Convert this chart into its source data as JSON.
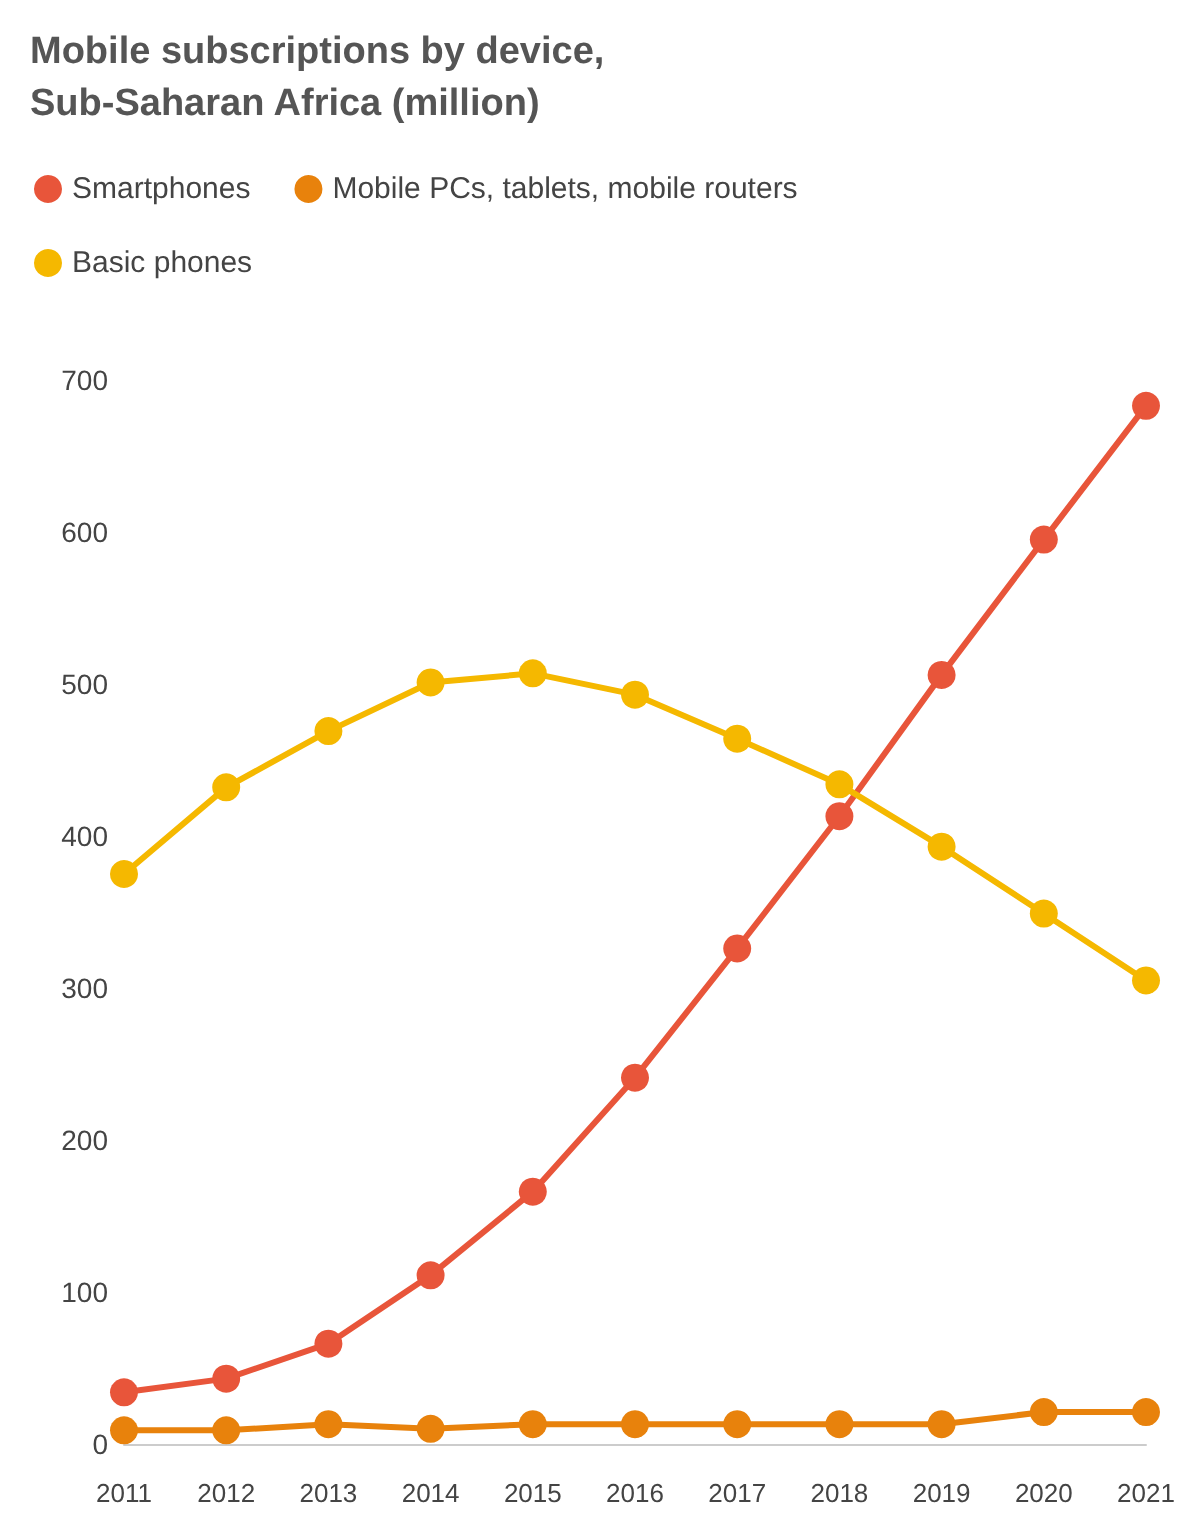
{
  "chart_data": {
    "type": "line",
    "title": "Mobile subscriptions by device, Sub-Saharan Africa (million)",
    "categories": [
      "2011",
      "2012",
      "2013",
      "2014",
      "2015",
      "2016",
      "2017",
      "2018",
      "2019",
      "2020",
      "2021"
    ],
    "series": [
      {
        "name": "Smartphones",
        "color": "#e8553a",
        "values": [
          34,
          43,
          66,
          111,
          166,
          241,
          326,
          413,
          506,
          595,
          683
        ]
      },
      {
        "name": "Mobile PCs, tablets, mobile routers",
        "color": "#e8820c",
        "values": [
          9,
          9,
          13,
          10,
          13,
          13,
          13,
          13,
          13,
          21,
          21
        ]
      },
      {
        "name": "Basic phones",
        "color": "#f5b800",
        "values": [
          375,
          432,
          469,
          501,
          507,
          493,
          464,
          434,
          393,
          349,
          305
        ]
      }
    ],
    "ylim": [
      0,
      700
    ],
    "yticks": [
      0,
      100,
      200,
      300,
      400,
      500,
      600,
      700
    ],
    "grid": false,
    "legend": "top left",
    "marker": "circle",
    "line_style": "solid"
  }
}
